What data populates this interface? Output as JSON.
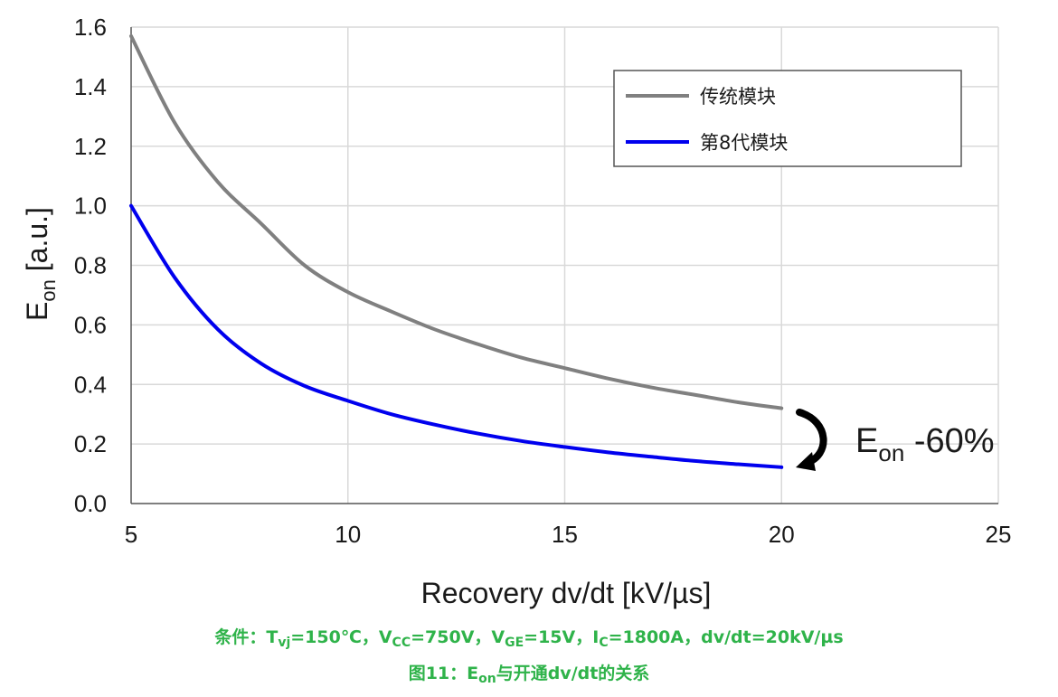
{
  "chart_data": {
    "type": "line",
    "xlabel": "Recovery dv/dt [kV/µs]",
    "ylabel_main": "E",
    "ylabel_sub": "on",
    "ylabel_rest": " [a.u.]",
    "xlim": [
      5,
      25
    ],
    "ylim": [
      0,
      1.6
    ],
    "xticks": [
      "5",
      "10",
      "15",
      "20",
      "25"
    ],
    "yticks": [
      "0.0",
      "0.2",
      "0.4",
      "0.6",
      "0.8",
      "1.0",
      "1.2",
      "1.4",
      "1.6"
    ],
    "xtick_values": [
      5,
      10,
      15,
      20,
      25
    ],
    "ytick_values": [
      0,
      0.2,
      0.4,
      0.6,
      0.8,
      1.0,
      1.2,
      1.4,
      1.6
    ],
    "grid": true,
    "legend_position": "top-right",
    "series": [
      {
        "name": "传统模块",
        "color": "#808080",
        "x": [
          5,
          6,
          7,
          8,
          9,
          10,
          11,
          12,
          13,
          14,
          15,
          16,
          17,
          18,
          19,
          20
        ],
        "y": [
          1.57,
          1.28,
          1.08,
          0.94,
          0.8,
          0.71,
          0.645,
          0.585,
          0.535,
          0.49,
          0.455,
          0.42,
          0.39,
          0.365,
          0.34,
          0.32
        ]
      },
      {
        "name": "第8代模块",
        "color": "#0000ee",
        "x": [
          5,
          6,
          7,
          8,
          9,
          10,
          11,
          12,
          13,
          14,
          15,
          16,
          17,
          18,
          19,
          20
        ],
        "y": [
          1.0,
          0.76,
          0.585,
          0.47,
          0.395,
          0.345,
          0.3,
          0.265,
          0.235,
          0.21,
          0.19,
          0.172,
          0.157,
          0.143,
          0.132,
          0.122
        ]
      }
    ],
    "annotation": {
      "main": "E",
      "sub": "on",
      "rest": " -60%",
      "arrow_icon": "curved-down-arrow-icon"
    }
  },
  "caption": {
    "line1_parts": [
      "条件：T",
      "vj",
      "=150℃，V",
      "CC",
      "=750V，V",
      "GE",
      "=15V，I",
      "C",
      "=1800A，dv/dt=20kV/µs"
    ],
    "line2_parts": [
      "图11：E",
      "on",
      "与开通dv/dt的关系"
    ]
  }
}
